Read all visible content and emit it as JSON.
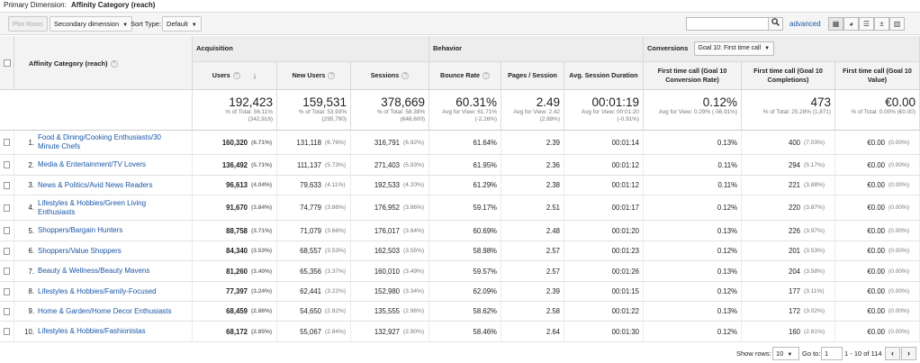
{
  "primary_dimension": {
    "label": "Primary Dimension:",
    "value": "Affinity Category (reach)"
  },
  "toolbar": {
    "plot_rows": "Plot Rows",
    "secondary_dimension": "Secondary dimension",
    "sort_type_label": "Sort Type:",
    "sort_type_value": "Default",
    "search_placeholder": "",
    "advanced": "advanced"
  },
  "header": {
    "dimension_col": "Affinity Category (reach)",
    "groups": {
      "acquisition": "Acquisition",
      "behavior": "Behavior",
      "conversions": "Conversions",
      "goal_select": "Goal 10: First time call"
    },
    "columns": [
      "Users",
      "New Users",
      "Sessions",
      "Bounce Rate",
      "Pages / Session",
      "Avg. Session Duration",
      "First time call (Goal 10 Conversion Rate)",
      "First time call (Goal 10 Completions)",
      "First time call (Goal 10 Value)"
    ]
  },
  "totals": [
    {
      "value": "192,423",
      "sub1": "% of Total: 56.11%",
      "sub2": "(342,916)"
    },
    {
      "value": "159,531",
      "sub1": "% of Total: 53.93%",
      "sub2": "(295,790)"
    },
    {
      "value": "378,669",
      "sub1": "% of Total: 58.38%",
      "sub2": "(648,600)"
    },
    {
      "value": "60.31%",
      "sub1": "Avg for View: 61.71%",
      "sub2": "(-2.26%)"
    },
    {
      "value": "2.49",
      "sub1": "Avg for View: 2.42",
      "sub2": "(2.88%)"
    },
    {
      "value": "00:01:19",
      "sub1": "Avg for View: 00:01:20",
      "sub2": "(-0.91%)"
    },
    {
      "value": "0.12%",
      "sub1": "Avg for View: 0.29% (-56.91%)",
      "sub2": ""
    },
    {
      "value": "473",
      "sub1": "% of Total: 25.28% (1,871)",
      "sub2": ""
    },
    {
      "value": "€0.00",
      "sub1": "% of Total: 0.00% (€0.00)",
      "sub2": ""
    }
  ],
  "rows": [
    {
      "idx": "1.",
      "name": "Food & Dining/Cooking Enthusiasts/30 Minute Chefs",
      "users": "160,320",
      "users_pct": "(6.71%)",
      "new_users": "131,118",
      "new_users_pct": "(6.76%)",
      "sessions": "316,791",
      "sessions_pct": "(6.92%)",
      "bounce": "61.64%",
      "pages": "2.39",
      "duration": "00:01:14",
      "conv_rate": "0.13%",
      "completions": "400",
      "completions_pct": "(7.03%)",
      "value": "€0.00",
      "value_pct": "(0.00%)"
    },
    {
      "idx": "2.",
      "name": "Media & Entertainment/TV Lovers",
      "users": "136,492",
      "users_pct": "(5.71%)",
      "new_users": "111,137",
      "new_users_pct": "(5.73%)",
      "sessions": "271,403",
      "sessions_pct": "(5.93%)",
      "bounce": "61.95%",
      "pages": "2.36",
      "duration": "00:01:12",
      "conv_rate": "0.11%",
      "completions": "294",
      "completions_pct": "(5.17%)",
      "value": "€0.00",
      "value_pct": "(0.00%)"
    },
    {
      "idx": "3.",
      "name": "News & Politics/Avid News Readers",
      "users": "96,613",
      "users_pct": "(4.04%)",
      "new_users": "79,633",
      "new_users_pct": "(4.11%)",
      "sessions": "192,533",
      "sessions_pct": "(4.20%)",
      "bounce": "61.29%",
      "pages": "2.38",
      "duration": "00:01:12",
      "conv_rate": "0.11%",
      "completions": "221",
      "completions_pct": "(3.88%)",
      "value": "€0.00",
      "value_pct": "(0.00%)"
    },
    {
      "idx": "4.",
      "name": "Lifestyles & Hobbies/Green Living Enthusiasts",
      "users": "91,670",
      "users_pct": "(3.84%)",
      "new_users": "74,779",
      "new_users_pct": "(3.86%)",
      "sessions": "176,952",
      "sessions_pct": "(3.86%)",
      "bounce": "59.17%",
      "pages": "2.51",
      "duration": "00:01:17",
      "conv_rate": "0.12%",
      "completions": "220",
      "completions_pct": "(3.87%)",
      "value": "€0.00",
      "value_pct": "(0.00%)"
    },
    {
      "idx": "5.",
      "name": "Shoppers/Bargain Hunters",
      "users": "88,758",
      "users_pct": "(3.71%)",
      "new_users": "71,079",
      "new_users_pct": "(3.66%)",
      "sessions": "176,017",
      "sessions_pct": "(3.84%)",
      "bounce": "60.69%",
      "pages": "2.48",
      "duration": "00:01:20",
      "conv_rate": "0.13%",
      "completions": "226",
      "completions_pct": "(3.97%)",
      "value": "€0.00",
      "value_pct": "(0.00%)"
    },
    {
      "idx": "6.",
      "name": "Shoppers/Value Shoppers",
      "users": "84,340",
      "users_pct": "(3.53%)",
      "new_users": "68,557",
      "new_users_pct": "(3.53%)",
      "sessions": "162,503",
      "sessions_pct": "(3.55%)",
      "bounce": "58.98%",
      "pages": "2.57",
      "duration": "00:01:23",
      "conv_rate": "0.12%",
      "completions": "201",
      "completions_pct": "(3.53%)",
      "value": "€0.00",
      "value_pct": "(0.00%)"
    },
    {
      "idx": "7.",
      "name": "Beauty & Wellness/Beauty Mavens",
      "users": "81,260",
      "users_pct": "(3.40%)",
      "new_users": "65,356",
      "new_users_pct": "(3.37%)",
      "sessions": "160,010",
      "sessions_pct": "(3.49%)",
      "bounce": "59.57%",
      "pages": "2.57",
      "duration": "00:01:26",
      "conv_rate": "0.13%",
      "completions": "204",
      "completions_pct": "(3.58%)",
      "value": "€0.00",
      "value_pct": "(0.00%)"
    },
    {
      "idx": "8.",
      "name": "Lifestyles & Hobbies/Family-Focused",
      "users": "77,397",
      "users_pct": "(3.24%)",
      "new_users": "62,441",
      "new_users_pct": "(3.22%)",
      "sessions": "152,980",
      "sessions_pct": "(3.34%)",
      "bounce": "62.09%",
      "pages": "2.39",
      "duration": "00:01:15",
      "conv_rate": "0.12%",
      "completions": "177",
      "completions_pct": "(3.11%)",
      "value": "€0.00",
      "value_pct": "(0.00%)"
    },
    {
      "idx": "9.",
      "name": "Home & Garden/Home Decor Enthusiasts",
      "users": "68,459",
      "users_pct": "(2.86%)",
      "new_users": "54,650",
      "new_users_pct": "(2.82%)",
      "sessions": "135,555",
      "sessions_pct": "(2.96%)",
      "bounce": "58.62%",
      "pages": "2.58",
      "duration": "00:01:22",
      "conv_rate": "0.13%",
      "completions": "172",
      "completions_pct": "(3.02%)",
      "value": "€0.00",
      "value_pct": "(0.00%)"
    },
    {
      "idx": "10.",
      "name": "Lifestyles & Hobbies/Fashionistas",
      "users": "68,172",
      "users_pct": "(2.85%)",
      "new_users": "55,067",
      "new_users_pct": "(2.84%)",
      "sessions": "132,927",
      "sessions_pct": "(2.90%)",
      "bounce": "58.46%",
      "pages": "2.64",
      "duration": "00:01:30",
      "conv_rate": "0.12%",
      "completions": "160",
      "completions_pct": "(2.81%)",
      "value": "€0.00",
      "value_pct": "(0.00%)"
    }
  ],
  "footer": {
    "show_rows_label": "Show rows:",
    "show_rows_value": "10",
    "goto_label": "Go to:",
    "goto_value": "1",
    "range": "1 - 10 of 114"
  },
  "colors": {
    "link": "#1a57a8",
    "header_bg": "#ededed"
  }
}
